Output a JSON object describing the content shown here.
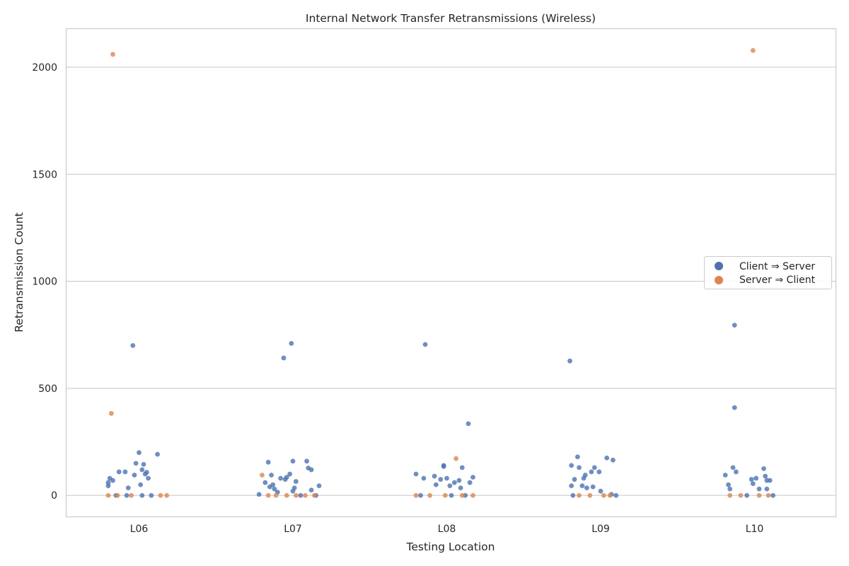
{
  "chart_data": {
    "type": "scatter",
    "title": "Internal Network Transfer Retransmissions (Wireless)",
    "xlabel": "Testing Location",
    "ylabel": "Retransmission Count",
    "categories": [
      "L06",
      "L07",
      "L08",
      "L09",
      "L10"
    ],
    "ylim": [
      -100,
      2180
    ],
    "yticks": [
      0,
      500,
      1000,
      1500,
      2000
    ],
    "grid": true,
    "legend_placement": "center-right",
    "series": [
      {
        "name": "Client ⇒ Server",
        "color": "#4c72b0",
        "points": [
          {
            "category": "L06",
            "jitter": -0.2,
            "value": 45
          },
          {
            "category": "L06",
            "jitter": -0.2,
            "value": 60
          },
          {
            "category": "L06",
            "jitter": -0.19,
            "value": 80
          },
          {
            "category": "L06",
            "jitter": -0.17,
            "value": 70
          },
          {
            "category": "L06",
            "jitter": -0.13,
            "value": 110
          },
          {
            "category": "L06",
            "jitter": -0.09,
            "value": 110
          },
          {
            "category": "L06",
            "jitter": -0.07,
            "value": 35
          },
          {
            "category": "L06",
            "jitter": -0.04,
            "value": 700
          },
          {
            "category": "L06",
            "jitter": -0.03,
            "value": 95
          },
          {
            "category": "L06",
            "jitter": -0.02,
            "value": 150
          },
          {
            "category": "L06",
            "jitter": 0.0,
            "value": 200
          },
          {
            "category": "L06",
            "jitter": 0.01,
            "value": 50
          },
          {
            "category": "L06",
            "jitter": 0.02,
            "value": 120
          },
          {
            "category": "L06",
            "jitter": 0.03,
            "value": 145
          },
          {
            "category": "L06",
            "jitter": 0.04,
            "value": 100
          },
          {
            "category": "L06",
            "jitter": 0.05,
            "value": 108
          },
          {
            "category": "L06",
            "jitter": 0.06,
            "value": 80
          },
          {
            "category": "L06",
            "jitter": 0.12,
            "value": 192
          },
          {
            "category": "L06",
            "jitter": -0.15,
            "value": 0
          },
          {
            "category": "L06",
            "jitter": -0.08,
            "value": 0
          },
          {
            "category": "L06",
            "jitter": 0.02,
            "value": 0
          },
          {
            "category": "L06",
            "jitter": 0.08,
            "value": 0
          },
          {
            "category": "L07",
            "jitter": -0.22,
            "value": 5
          },
          {
            "category": "L07",
            "jitter": -0.18,
            "value": 60
          },
          {
            "category": "L07",
            "jitter": -0.16,
            "value": 155
          },
          {
            "category": "L07",
            "jitter": -0.15,
            "value": 40
          },
          {
            "category": "L07",
            "jitter": -0.14,
            "value": 95
          },
          {
            "category": "L07",
            "jitter": -0.13,
            "value": 50
          },
          {
            "category": "L07",
            "jitter": -0.12,
            "value": 30
          },
          {
            "category": "L07",
            "jitter": -0.1,
            "value": 15
          },
          {
            "category": "L07",
            "jitter": -0.08,
            "value": 80
          },
          {
            "category": "L07",
            "jitter": -0.06,
            "value": 642
          },
          {
            "category": "L07",
            "jitter": -0.05,
            "value": 75
          },
          {
            "category": "L07",
            "jitter": -0.04,
            "value": 85
          },
          {
            "category": "L07",
            "jitter": -0.02,
            "value": 100
          },
          {
            "category": "L07",
            "jitter": -0.01,
            "value": 710
          },
          {
            "category": "L07",
            "jitter": 0.0,
            "value": 160
          },
          {
            "category": "L07",
            "jitter": 0.0,
            "value": 20
          },
          {
            "category": "L07",
            "jitter": 0.01,
            "value": 35
          },
          {
            "category": "L07",
            "jitter": 0.02,
            "value": 65
          },
          {
            "category": "L07",
            "jitter": 0.09,
            "value": 160
          },
          {
            "category": "L07",
            "jitter": 0.1,
            "value": 128
          },
          {
            "category": "L07",
            "jitter": 0.12,
            "value": 120
          },
          {
            "category": "L07",
            "jitter": 0.12,
            "value": 25
          },
          {
            "category": "L07",
            "jitter": 0.17,
            "value": 45
          },
          {
            "category": "L07",
            "jitter": 0.05,
            "value": 0
          },
          {
            "category": "L07",
            "jitter": 0.15,
            "value": 0
          },
          {
            "category": "L08",
            "jitter": -0.2,
            "value": 100
          },
          {
            "category": "L08",
            "jitter": -0.17,
            "value": 0
          },
          {
            "category": "L08",
            "jitter": -0.15,
            "value": 80
          },
          {
            "category": "L08",
            "jitter": -0.14,
            "value": 705
          },
          {
            "category": "L08",
            "jitter": -0.08,
            "value": 90
          },
          {
            "category": "L08",
            "jitter": -0.07,
            "value": 50
          },
          {
            "category": "L08",
            "jitter": -0.04,
            "value": 75
          },
          {
            "category": "L08",
            "jitter": -0.02,
            "value": 140
          },
          {
            "category": "L08",
            "jitter": -0.02,
            "value": 135
          },
          {
            "category": "L08",
            "jitter": 0.0,
            "value": 80
          },
          {
            "category": "L08",
            "jitter": 0.02,
            "value": 45
          },
          {
            "category": "L08",
            "jitter": 0.05,
            "value": 60
          },
          {
            "category": "L08",
            "jitter": 0.08,
            "value": 70
          },
          {
            "category": "L08",
            "jitter": 0.09,
            "value": 35
          },
          {
            "category": "L08",
            "jitter": 0.1,
            "value": 130
          },
          {
            "category": "L08",
            "jitter": 0.14,
            "value": 335
          },
          {
            "category": "L08",
            "jitter": 0.15,
            "value": 60
          },
          {
            "category": "L08",
            "jitter": 0.17,
            "value": 85
          },
          {
            "category": "L08",
            "jitter": 0.03,
            "value": 0
          },
          {
            "category": "L08",
            "jitter": 0.12,
            "value": 0
          },
          {
            "category": "L09",
            "jitter": -0.2,
            "value": 628
          },
          {
            "category": "L09",
            "jitter": -0.19,
            "value": 140
          },
          {
            "category": "L09",
            "jitter": -0.19,
            "value": 45
          },
          {
            "category": "L09",
            "jitter": -0.17,
            "value": 75
          },
          {
            "category": "L09",
            "jitter": -0.15,
            "value": 180
          },
          {
            "category": "L09",
            "jitter": -0.14,
            "value": 130
          },
          {
            "category": "L09",
            "jitter": -0.12,
            "value": 45
          },
          {
            "category": "L09",
            "jitter": -0.11,
            "value": 80
          },
          {
            "category": "L09",
            "jitter": -0.1,
            "value": 95
          },
          {
            "category": "L09",
            "jitter": -0.09,
            "value": 35
          },
          {
            "category": "L09",
            "jitter": -0.06,
            "value": 110
          },
          {
            "category": "L09",
            "jitter": -0.05,
            "value": 40
          },
          {
            "category": "L09",
            "jitter": -0.04,
            "value": 130
          },
          {
            "category": "L09",
            "jitter": -0.01,
            "value": 110
          },
          {
            "category": "L09",
            "jitter": 0.0,
            "value": 20
          },
          {
            "category": "L09",
            "jitter": 0.04,
            "value": 175
          },
          {
            "category": "L09",
            "jitter": 0.07,
            "value": 5
          },
          {
            "category": "L09",
            "jitter": 0.08,
            "value": 165
          },
          {
            "category": "L09",
            "jitter": -0.18,
            "value": 0
          },
          {
            "category": "L09",
            "jitter": 0.1,
            "value": 0
          },
          {
            "category": "L10",
            "jitter": -0.19,
            "value": 95
          },
          {
            "category": "L10",
            "jitter": -0.17,
            "value": 50
          },
          {
            "category": "L10",
            "jitter": -0.16,
            "value": 30
          },
          {
            "category": "L10",
            "jitter": -0.14,
            "value": 130
          },
          {
            "category": "L10",
            "jitter": -0.13,
            "value": 795
          },
          {
            "category": "L10",
            "jitter": -0.13,
            "value": 410
          },
          {
            "category": "L10",
            "jitter": -0.12,
            "value": 110
          },
          {
            "category": "L10",
            "jitter": -0.02,
            "value": 75
          },
          {
            "category": "L10",
            "jitter": -0.01,
            "value": 55
          },
          {
            "category": "L10",
            "jitter": 0.01,
            "value": 80
          },
          {
            "category": "L10",
            "jitter": 0.03,
            "value": 30
          },
          {
            "category": "L10",
            "jitter": 0.06,
            "value": 125
          },
          {
            "category": "L10",
            "jitter": 0.07,
            "value": 90
          },
          {
            "category": "L10",
            "jitter": 0.08,
            "value": 30
          },
          {
            "category": "L10",
            "jitter": 0.08,
            "value": 70
          },
          {
            "category": "L10",
            "jitter": 0.1,
            "value": 70
          },
          {
            "category": "L10",
            "jitter": -0.05,
            "value": 0
          },
          {
            "category": "L10",
            "jitter": 0.12,
            "value": 0
          }
        ]
      },
      {
        "name": "Server ⇒ Client",
        "color": "#dd8452",
        "points": [
          {
            "category": "L06",
            "jitter": -0.2,
            "value": 0
          },
          {
            "category": "L06",
            "jitter": -0.14,
            "value": 0
          },
          {
            "category": "L06",
            "jitter": -0.05,
            "value": 0
          },
          {
            "category": "L06",
            "jitter": 0.14,
            "value": 0
          },
          {
            "category": "L06",
            "jitter": 0.18,
            "value": 0
          },
          {
            "category": "L06",
            "jitter": -0.17,
            "value": 2060
          },
          {
            "category": "L06",
            "jitter": -0.18,
            "value": 383
          },
          {
            "category": "L07",
            "jitter": -0.2,
            "value": 95
          },
          {
            "category": "L07",
            "jitter": -0.16,
            "value": 0
          },
          {
            "category": "L07",
            "jitter": -0.11,
            "value": 0
          },
          {
            "category": "L07",
            "jitter": -0.04,
            "value": 0
          },
          {
            "category": "L07",
            "jitter": 0.02,
            "value": 0
          },
          {
            "category": "L07",
            "jitter": 0.08,
            "value": 0
          },
          {
            "category": "L07",
            "jitter": 0.14,
            "value": 0
          },
          {
            "category": "L08",
            "jitter": -0.2,
            "value": 0
          },
          {
            "category": "L08",
            "jitter": -0.11,
            "value": 0
          },
          {
            "category": "L08",
            "jitter": -0.01,
            "value": 0
          },
          {
            "category": "L08",
            "jitter": 0.06,
            "value": 172
          },
          {
            "category": "L08",
            "jitter": 0.1,
            "value": 0
          },
          {
            "category": "L08",
            "jitter": 0.17,
            "value": 0
          },
          {
            "category": "L09",
            "jitter": -0.14,
            "value": 0
          },
          {
            "category": "L09",
            "jitter": -0.07,
            "value": 0
          },
          {
            "category": "L09",
            "jitter": 0.02,
            "value": 0
          },
          {
            "category": "L09",
            "jitter": 0.06,
            "value": 0
          },
          {
            "category": "L10",
            "jitter": -0.16,
            "value": 0
          },
          {
            "category": "L10",
            "jitter": -0.09,
            "value": 0
          },
          {
            "category": "L10",
            "jitter": -0.01,
            "value": 2078
          },
          {
            "category": "L10",
            "jitter": 0.03,
            "value": 0
          },
          {
            "category": "L10",
            "jitter": 0.09,
            "value": 0
          }
        ]
      }
    ]
  }
}
